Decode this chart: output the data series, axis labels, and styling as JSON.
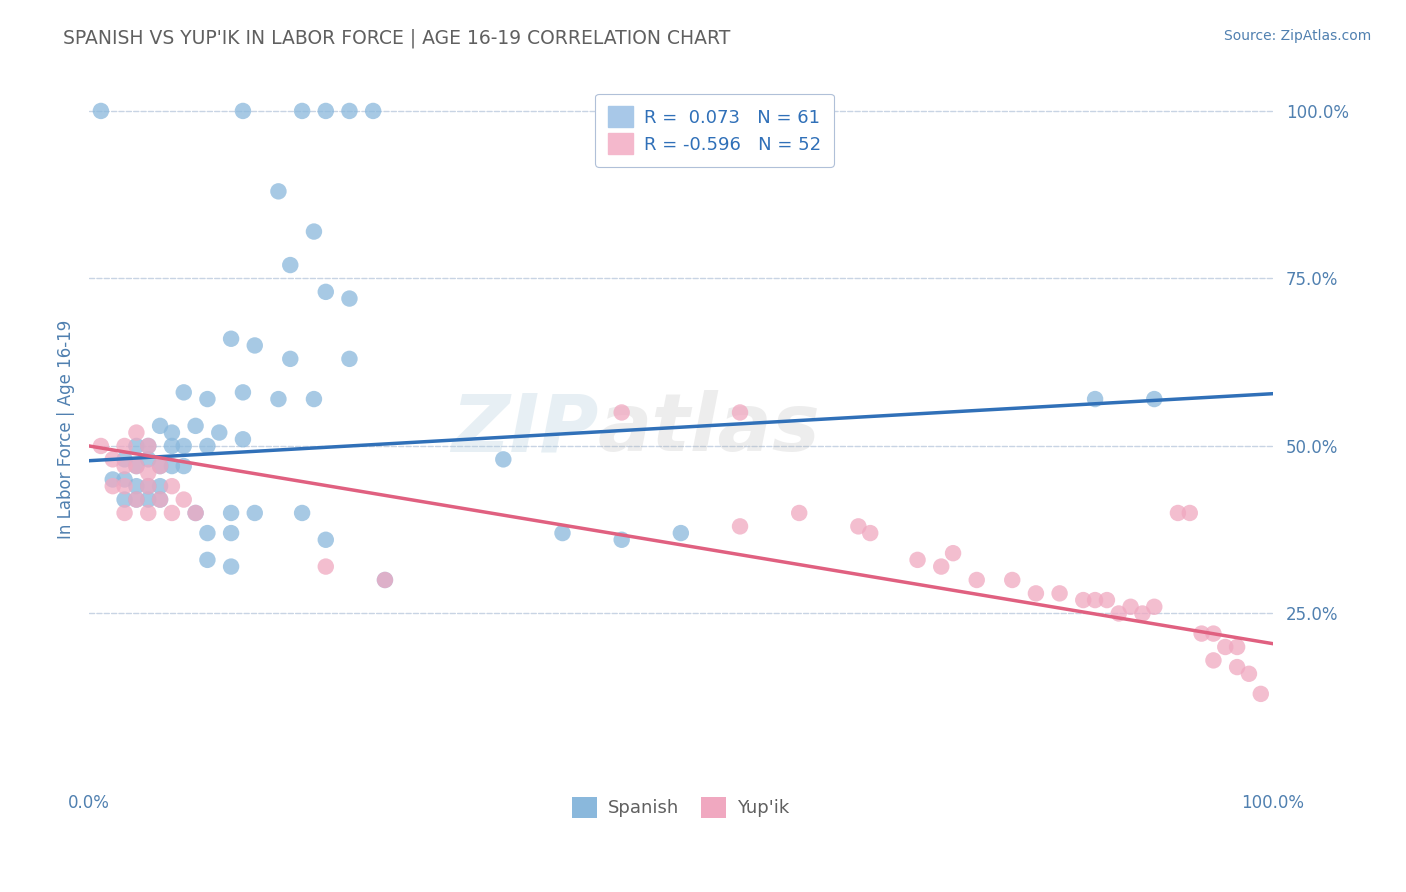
{
  "title": "SPANISH VS YUP'IK IN LABOR FORCE | AGE 16-19 CORRELATION CHART",
  "source": "Source: ZipAtlas.com",
  "ylabel": "In Labor Force | Age 16-19",
  "watermark_zip": "ZIP",
  "watermark_atlas": "atlas",
  "legend_blue_r": "0.073",
  "legend_blue_n": "61",
  "legend_pink_r": "-0.596",
  "legend_pink_n": "52",
  "blue_scatter_color": "#8ab8dc",
  "pink_scatter_color": "#f0a8c0",
  "blue_line_color": "#3070b8",
  "pink_line_color": "#e06080",
  "title_color": "#606060",
  "axis_label_color": "#5080b0",
  "grid_color": "#c8d4e4",
  "background_color": "#ffffff",
  "legend_patch_blue": "#a8c8e8",
  "legend_patch_pink": "#f4b8cc",
  "legend_border_color": "#b0c0d8",
  "legend_text_color": "#3070b8",
  "blue_line_intercept": 0.478,
  "blue_line_slope": 0.1,
  "pink_line_intercept": 0.5,
  "pink_line_slope": -0.295,
  "spanish_points": [
    [
      0.01,
      1.0
    ],
    [
      0.13,
      1.0
    ],
    [
      0.18,
      1.0
    ],
    [
      0.2,
      1.0
    ],
    [
      0.22,
      1.0
    ],
    [
      0.24,
      1.0
    ],
    [
      0.16,
      0.88
    ],
    [
      0.19,
      0.82
    ],
    [
      0.17,
      0.77
    ],
    [
      0.2,
      0.73
    ],
    [
      0.22,
      0.72
    ],
    [
      0.12,
      0.66
    ],
    [
      0.14,
      0.65
    ],
    [
      0.17,
      0.63
    ],
    [
      0.22,
      0.63
    ],
    [
      0.08,
      0.58
    ],
    [
      0.1,
      0.57
    ],
    [
      0.13,
      0.58
    ],
    [
      0.16,
      0.57
    ],
    [
      0.19,
      0.57
    ],
    [
      0.06,
      0.53
    ],
    [
      0.07,
      0.52
    ],
    [
      0.09,
      0.53
    ],
    [
      0.11,
      0.52
    ],
    [
      0.13,
      0.51
    ],
    [
      0.04,
      0.5
    ],
    [
      0.05,
      0.5
    ],
    [
      0.07,
      0.5
    ],
    [
      0.08,
      0.5
    ],
    [
      0.1,
      0.5
    ],
    [
      0.03,
      0.48
    ],
    [
      0.04,
      0.47
    ],
    [
      0.05,
      0.48
    ],
    [
      0.06,
      0.47
    ],
    [
      0.07,
      0.47
    ],
    [
      0.08,
      0.47
    ],
    [
      0.02,
      0.45
    ],
    [
      0.03,
      0.45
    ],
    [
      0.04,
      0.44
    ],
    [
      0.05,
      0.44
    ],
    [
      0.06,
      0.44
    ],
    [
      0.03,
      0.42
    ],
    [
      0.04,
      0.42
    ],
    [
      0.05,
      0.42
    ],
    [
      0.06,
      0.42
    ],
    [
      0.09,
      0.4
    ],
    [
      0.12,
      0.4
    ],
    [
      0.14,
      0.4
    ],
    [
      0.18,
      0.4
    ],
    [
      0.1,
      0.37
    ],
    [
      0.12,
      0.37
    ],
    [
      0.2,
      0.36
    ],
    [
      0.1,
      0.33
    ],
    [
      0.12,
      0.32
    ],
    [
      0.25,
      0.3
    ],
    [
      0.35,
      0.48
    ],
    [
      0.4,
      0.37
    ],
    [
      0.45,
      0.36
    ],
    [
      0.5,
      0.37
    ],
    [
      0.85,
      0.57
    ],
    [
      0.9,
      0.57
    ]
  ],
  "yupik_points": [
    [
      0.01,
      0.5
    ],
    [
      0.02,
      0.48
    ],
    [
      0.03,
      0.5
    ],
    [
      0.04,
      0.52
    ],
    [
      0.05,
      0.5
    ],
    [
      0.03,
      0.47
    ],
    [
      0.04,
      0.47
    ],
    [
      0.05,
      0.46
    ],
    [
      0.06,
      0.47
    ],
    [
      0.02,
      0.44
    ],
    [
      0.03,
      0.44
    ],
    [
      0.05,
      0.44
    ],
    [
      0.07,
      0.44
    ],
    [
      0.04,
      0.42
    ],
    [
      0.06,
      0.42
    ],
    [
      0.08,
      0.42
    ],
    [
      0.03,
      0.4
    ],
    [
      0.05,
      0.4
    ],
    [
      0.07,
      0.4
    ],
    [
      0.09,
      0.4
    ],
    [
      0.2,
      0.32
    ],
    [
      0.25,
      0.3
    ],
    [
      0.45,
      0.55
    ],
    [
      0.55,
      0.55
    ],
    [
      0.55,
      0.38
    ],
    [
      0.6,
      0.4
    ],
    [
      0.65,
      0.38
    ],
    [
      0.66,
      0.37
    ],
    [
      0.7,
      0.33
    ],
    [
      0.72,
      0.32
    ],
    [
      0.73,
      0.34
    ],
    [
      0.75,
      0.3
    ],
    [
      0.78,
      0.3
    ],
    [
      0.8,
      0.28
    ],
    [
      0.82,
      0.28
    ],
    [
      0.84,
      0.27
    ],
    [
      0.85,
      0.27
    ],
    [
      0.86,
      0.27
    ],
    [
      0.87,
      0.25
    ],
    [
      0.88,
      0.26
    ],
    [
      0.89,
      0.25
    ],
    [
      0.9,
      0.26
    ],
    [
      0.92,
      0.4
    ],
    [
      0.93,
      0.4
    ],
    [
      0.94,
      0.22
    ],
    [
      0.95,
      0.22
    ],
    [
      0.96,
      0.2
    ],
    [
      0.97,
      0.2
    ],
    [
      0.95,
      0.18
    ],
    [
      0.97,
      0.17
    ],
    [
      0.98,
      0.16
    ],
    [
      0.99,
      0.13
    ]
  ]
}
